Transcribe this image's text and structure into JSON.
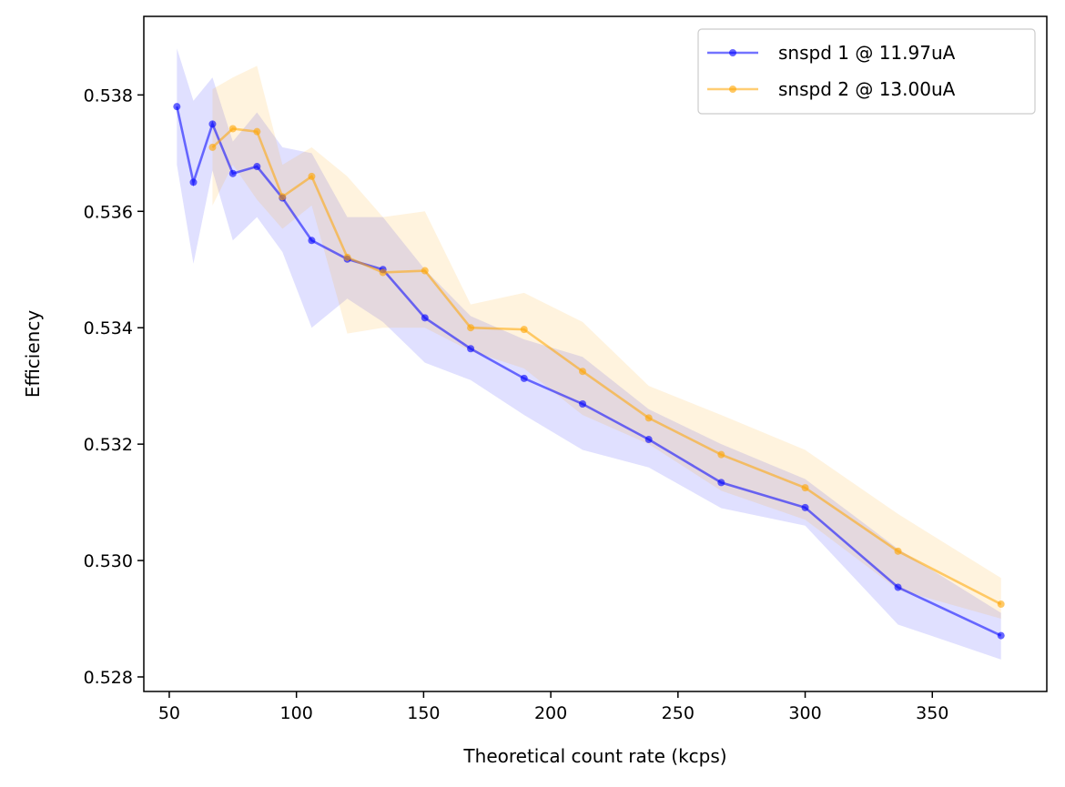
{
  "chart_data": {
    "type": "line",
    "title": "",
    "xlabel": "Theoretical count rate (kcps)",
    "ylabel": "Efficiency",
    "xlim": [
      40,
      395
    ],
    "ylim": [
      0.52775,
      0.53935
    ],
    "xticks": [
      50,
      100,
      150,
      200,
      250,
      300,
      350
    ],
    "yticks": [
      0.528,
      0.53,
      0.532,
      0.534,
      0.536,
      0.538
    ],
    "xtick_labels": [
      "50",
      "100",
      "150",
      "200",
      "250",
      "300",
      "350"
    ],
    "ytick_labels": [
      "0.528",
      "0.530",
      "0.532",
      "0.534",
      "0.536",
      "0.538"
    ],
    "grid": false,
    "legend_position": "top-right",
    "series": [
      {
        "name": "snspd 1 @ 11.97uA",
        "color": "#0000ff",
        "x": [
          53,
          59.5,
          67,
          75,
          84.5,
          94.5,
          106,
          120,
          134,
          150.5,
          168.5,
          189.5,
          212.5,
          238.5,
          267,
          300,
          336.5,
          377
        ],
        "y": [
          0.5378,
          0.5365,
          0.5375,
          0.53665,
          0.53677,
          0.53623,
          0.5355,
          0.53518,
          0.535,
          0.53417,
          0.53364,
          0.53313,
          0.53269,
          0.53208,
          0.53134,
          0.53091,
          0.52954,
          0.52871
        ],
        "upper": [
          0.5388,
          0.5379,
          0.5383,
          0.5372,
          0.5377,
          0.5371,
          0.537,
          0.5359,
          0.5359,
          0.535,
          0.5342,
          0.5338,
          0.5335,
          0.5326,
          0.532,
          0.5314,
          0.5302,
          0.5291
        ],
        "lower": [
          0.5368,
          0.5351,
          0.5367,
          0.5355,
          0.5359,
          0.5353,
          0.534,
          0.5345,
          0.5341,
          0.5334,
          0.5331,
          0.5325,
          0.5319,
          0.5316,
          0.5309,
          0.5306,
          0.5289,
          0.5283
        ]
      },
      {
        "name": "snspd 2 @ 13.00uA",
        "color": "#ffa500",
        "x": [
          67,
          75,
          84.5,
          94.5,
          106,
          120,
          134,
          150.5,
          168.5,
          189.5,
          212.5,
          238.5,
          267,
          300,
          336.5,
          377
        ],
        "y": [
          0.5371,
          0.53742,
          0.53737,
          0.53625,
          0.5366,
          0.53521,
          0.53495,
          0.53498,
          0.534,
          0.53397,
          0.53325,
          0.53245,
          0.53182,
          0.53125,
          0.53016,
          0.52925
        ],
        "upper": [
          0.5381,
          0.5383,
          0.5385,
          0.5368,
          0.5371,
          0.5366,
          0.5359,
          0.536,
          0.5344,
          0.5346,
          0.5341,
          0.533,
          0.5325,
          0.5319,
          0.5308,
          0.5297
        ],
        "lower": [
          0.5361,
          0.5368,
          0.5362,
          0.5357,
          0.5361,
          0.5339,
          0.534,
          0.534,
          0.5336,
          0.5333,
          0.5325,
          0.532,
          0.5312,
          0.5307,
          0.5295,
          0.529
        ]
      }
    ]
  }
}
